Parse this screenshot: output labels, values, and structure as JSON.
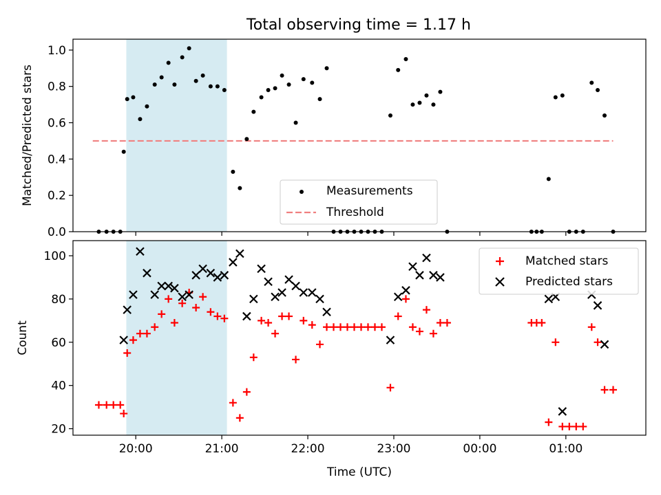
{
  "figure_title": "Total observing time = 1.17 h",
  "colors": {
    "measurements": "#000000",
    "threshold": "#f08080",
    "matched": "#ff0000",
    "predicted": "#000000",
    "highlight": "#add8e6"
  },
  "chart_data": [
    {
      "type": "scatter",
      "title": "Total observing time = 1.17 h",
      "ylabel": "Matched/Predicted stars",
      "xlabel": "",
      "xlim": [
        19.27,
        25.93
      ],
      "ylim": [
        0,
        1.06
      ],
      "yticks": [
        0.0,
        0.2,
        0.4,
        0.6,
        0.8,
        1.0
      ],
      "ytick_labels": [
        "0.0",
        "0.2",
        "0.4",
        "0.6",
        "0.8",
        "1.0"
      ],
      "xticks": [
        20,
        21,
        22,
        23,
        24,
        25
      ],
      "highlight_span": [
        19.89,
        21.06
      ],
      "legend_position": "lower center",
      "legend": {
        "measurements": "Measurements",
        "threshold": "Threshold"
      },
      "threshold": {
        "value": 0.5,
        "x_range": [
          19.5,
          25.55
        ]
      },
      "measurements": [
        [
          19.57,
          0.0
        ],
        [
          19.66,
          0.0
        ],
        [
          19.74,
          0.0
        ],
        [
          19.82,
          0.0
        ],
        [
          19.86,
          0.44
        ],
        [
          19.9,
          0.73
        ],
        [
          19.97,
          0.74
        ],
        [
          20.05,
          0.62
        ],
        [
          20.13,
          0.69
        ],
        [
          20.22,
          0.81
        ],
        [
          20.3,
          0.85
        ],
        [
          20.38,
          0.93
        ],
        [
          20.45,
          0.81
        ],
        [
          20.54,
          0.96
        ],
        [
          20.62,
          1.01
        ],
        [
          20.7,
          0.83
        ],
        [
          20.78,
          0.86
        ],
        [
          20.87,
          0.8
        ],
        [
          20.95,
          0.8
        ],
        [
          21.03,
          0.78
        ],
        [
          21.13,
          0.33
        ],
        [
          21.21,
          0.24
        ],
        [
          21.29,
          0.51
        ],
        [
          21.37,
          0.66
        ],
        [
          21.46,
          0.74
        ],
        [
          21.54,
          0.78
        ],
        [
          21.62,
          0.79
        ],
        [
          21.7,
          0.86
        ],
        [
          21.78,
          0.81
        ],
        [
          21.86,
          0.6
        ],
        [
          21.95,
          0.84
        ],
        [
          22.05,
          0.82
        ],
        [
          22.14,
          0.73
        ],
        [
          22.22,
          0.9
        ],
        [
          22.3,
          0.0
        ],
        [
          22.38,
          0.0
        ],
        [
          22.46,
          0.0
        ],
        [
          22.54,
          0.0
        ],
        [
          22.62,
          0.0
        ],
        [
          22.7,
          0.0
        ],
        [
          22.78,
          0.0
        ],
        [
          22.86,
          0.0
        ],
        [
          22.96,
          0.64
        ],
        [
          23.05,
          0.89
        ],
        [
          23.14,
          0.95
        ],
        [
          23.22,
          0.7
        ],
        [
          23.3,
          0.71
        ],
        [
          23.38,
          0.75
        ],
        [
          23.46,
          0.7
        ],
        [
          23.54,
          0.77
        ],
        [
          23.62,
          0.0
        ],
        [
          24.6,
          0.0
        ],
        [
          24.66,
          0.0
        ],
        [
          24.72,
          0.0
        ],
        [
          24.8,
          0.29
        ],
        [
          24.88,
          0.74
        ],
        [
          24.96,
          0.75
        ],
        [
          25.04,
          0.0
        ],
        [
          25.12,
          0.0
        ],
        [
          25.2,
          0.0
        ],
        [
          25.3,
          0.82
        ],
        [
          25.37,
          0.78
        ],
        [
          25.45,
          0.64
        ],
        [
          25.55,
          0.0
        ]
      ]
    },
    {
      "type": "scatter",
      "ylabel": "Count",
      "xlabel": "Time (UTC)",
      "xlim": [
        19.27,
        25.93
      ],
      "ylim": [
        17,
        107
      ],
      "yticks": [
        20,
        40,
        60,
        80,
        100
      ],
      "ytick_labels": [
        "20",
        "40",
        "60",
        "80",
        "100"
      ],
      "xticks": [
        20,
        21,
        22,
        23,
        24,
        25
      ],
      "xtick_labels": [
        "20:00",
        "21:00",
        "22:00",
        "23:00",
        "00:00",
        "01:00"
      ],
      "highlight_span": [
        19.89,
        21.06
      ],
      "legend_position": "upper right",
      "series": [
        {
          "name": "Matched stars",
          "marker": "plus",
          "points": [
            [
              19.57,
              31
            ],
            [
              19.66,
              31
            ],
            [
              19.74,
              31
            ],
            [
              19.82,
              31
            ],
            [
              19.86,
              27
            ],
            [
              19.9,
              55
            ],
            [
              19.97,
              61
            ],
            [
              20.05,
              64
            ],
            [
              20.13,
              64
            ],
            [
              20.22,
              67
            ],
            [
              20.3,
              73
            ],
            [
              20.38,
              80
            ],
            [
              20.45,
              69
            ],
            [
              20.54,
              78
            ],
            [
              20.62,
              83
            ],
            [
              20.7,
              76
            ],
            [
              20.78,
              81
            ],
            [
              20.87,
              74
            ],
            [
              20.95,
              72
            ],
            [
              21.03,
              71
            ],
            [
              21.13,
              32
            ],
            [
              21.21,
              25
            ],
            [
              21.29,
              37
            ],
            [
              21.37,
              53
            ],
            [
              21.46,
              70
            ],
            [
              21.54,
              69
            ],
            [
              21.62,
              64
            ],
            [
              21.7,
              72
            ],
            [
              21.78,
              72
            ],
            [
              21.86,
              52
            ],
            [
              21.95,
              70
            ],
            [
              22.05,
              68
            ],
            [
              22.14,
              59
            ],
            [
              22.22,
              67
            ],
            [
              22.3,
              67
            ],
            [
              22.38,
              67
            ],
            [
              22.46,
              67
            ],
            [
              22.54,
              67
            ],
            [
              22.62,
              67
            ],
            [
              22.7,
              67
            ],
            [
              22.78,
              67
            ],
            [
              22.86,
              67
            ],
            [
              22.96,
              39
            ],
            [
              23.05,
              72
            ],
            [
              23.14,
              80
            ],
            [
              23.22,
              67
            ],
            [
              23.3,
              65
            ],
            [
              23.38,
              75
            ],
            [
              23.46,
              64
            ],
            [
              23.54,
              69
            ],
            [
              23.62,
              69
            ],
            [
              24.6,
              69
            ],
            [
              24.66,
              69
            ],
            [
              24.72,
              69
            ],
            [
              24.8,
              23
            ],
            [
              24.88,
              60
            ],
            [
              24.96,
              21
            ],
            [
              25.04,
              21
            ],
            [
              25.12,
              21
            ],
            [
              25.2,
              21
            ],
            [
              25.3,
              67
            ],
            [
              25.37,
              60
            ],
            [
              25.45,
              38
            ],
            [
              25.55,
              38
            ]
          ]
        },
        {
          "name": "Predicted stars",
          "marker": "x",
          "points": [
            [
              19.86,
              61
            ],
            [
              19.9,
              75
            ],
            [
              19.97,
              82
            ],
            [
              20.05,
              102
            ],
            [
              20.13,
              92
            ],
            [
              20.22,
              82
            ],
            [
              20.3,
              86
            ],
            [
              20.38,
              86
            ],
            [
              20.45,
              85
            ],
            [
              20.54,
              81
            ],
            [
              20.62,
              82
            ],
            [
              20.7,
              91
            ],
            [
              20.78,
              94
            ],
            [
              20.87,
              92
            ],
            [
              20.95,
              90
            ],
            [
              21.03,
              91
            ],
            [
              21.13,
              97
            ],
            [
              21.21,
              101
            ],
            [
              21.29,
              72
            ],
            [
              21.37,
              80
            ],
            [
              21.46,
              94
            ],
            [
              21.54,
              88
            ],
            [
              21.62,
              81
            ],
            [
              21.7,
              83
            ],
            [
              21.78,
              89
            ],
            [
              21.86,
              86
            ],
            [
              21.95,
              83
            ],
            [
              22.05,
              83
            ],
            [
              22.14,
              80
            ],
            [
              22.22,
              74
            ],
            [
              22.96,
              61
            ],
            [
              23.05,
              81
            ],
            [
              23.14,
              84
            ],
            [
              23.22,
              95
            ],
            [
              23.3,
              91
            ],
            [
              23.38,
              99
            ],
            [
              23.46,
              91
            ],
            [
              23.54,
              90
            ],
            [
              24.8,
              80
            ],
            [
              24.88,
              81
            ],
            [
              24.96,
              28
            ],
            [
              25.3,
              82
            ],
            [
              25.37,
              77
            ],
            [
              25.45,
              59
            ]
          ]
        }
      ]
    }
  ]
}
